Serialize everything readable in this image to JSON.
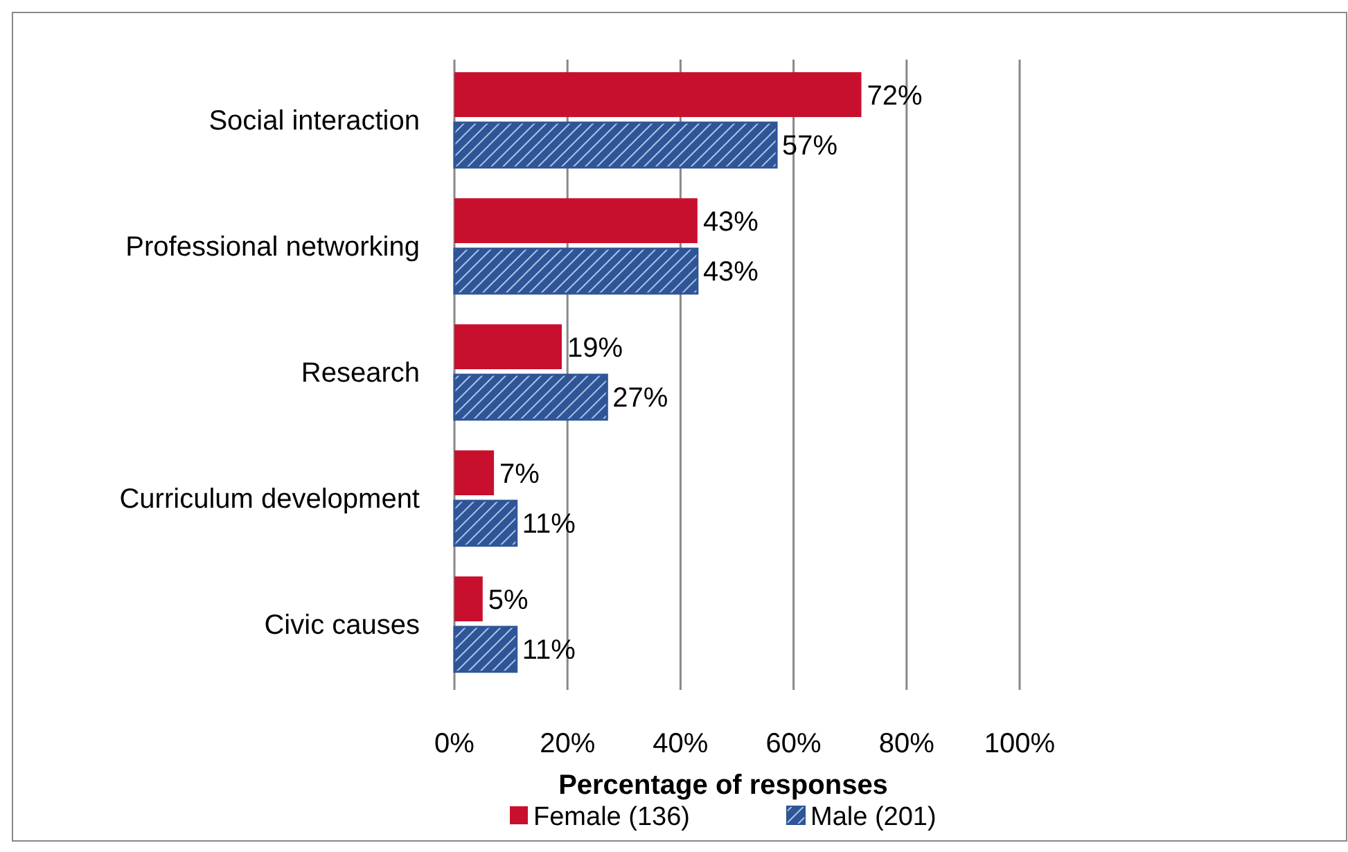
{
  "chart_data": {
    "type": "bar",
    "orientation": "horizontal",
    "xlabel": "Percentage of responses",
    "categories": [
      "Social interaction",
      "Professional networking",
      "Research",
      "Curriculum development",
      "Civic causes"
    ],
    "series": [
      {
        "name": "Female (136)",
        "color": "#c8102e",
        "values": [
          72,
          43,
          19,
          7,
          5
        ],
        "value_labels": [
          "72%",
          "43%",
          "19%",
          "7%",
          "5%"
        ]
      },
      {
        "name": "Male (201)",
        "color": "#2f5597",
        "values": [
          57,
          43,
          27,
          11,
          11
        ],
        "value_labels": [
          "57%",
          "43%",
          "27%",
          "11%",
          "11%"
        ]
      }
    ],
    "xlim": [
      0,
      100
    ],
    "xticks": [
      {
        "value": 0,
        "label": "0%"
      },
      {
        "value": 20,
        "label": "20%"
      },
      {
        "value": 40,
        "label": "40%"
      },
      {
        "value": 60,
        "label": "60%"
      },
      {
        "value": 80,
        "label": "80%"
      },
      {
        "value": 100,
        "label": "100%"
      }
    ],
    "grid": "x",
    "legend": "bottom"
  }
}
